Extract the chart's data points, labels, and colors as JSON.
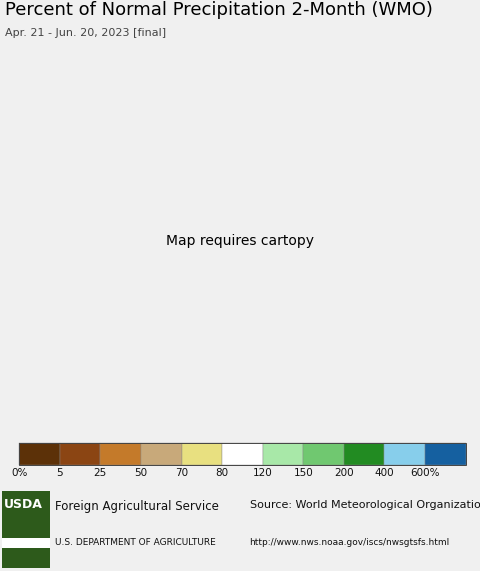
{
  "title": "Percent of Normal Precipitation 2-Month (WMO)",
  "subtitle": "Apr. 21 - Jun. 20, 2023 [final]",
  "colorbar_labels": [
    "0%",
    "5",
    "25",
    "50",
    "70",
    "80",
    "120",
    "150",
    "200",
    "400",
    "600%"
  ],
  "colorbar_colors": [
    "#5c3108",
    "#8b4513",
    "#c47a2a",
    "#c8a97a",
    "#e8e080",
    "#ffffff",
    "#a8e8a8",
    "#70c870",
    "#228b22",
    "#87ceeb",
    "#1560a0"
  ],
  "ocean_color": "#b8e8f8",
  "land_outside_color": "#d8d0c8",
  "border_color": "#333333",
  "inner_border_color": "#666666",
  "bg_color": "#f0f0f0",
  "title_bg": "#f0f0f0",
  "footer_bg": "#cccccc",
  "usda_green": "#2d5a1b",
  "usda_text": "Foreign Agricultural Service",
  "usda_subtext": "U.S. DEPARTMENT OF AGRICULTURE",
  "source_text": "Source: World Meteorological Organization",
  "source_url": "http://www.nws.noaa.gov/iscs/nwsgtsfs.html",
  "title_fontsize": 13,
  "subtitle_fontsize": 8,
  "cb_label_fontsize": 7.5,
  "footer_fontsize": 8.5,
  "map_extent": [
    52,
    108,
    5,
    42
  ]
}
